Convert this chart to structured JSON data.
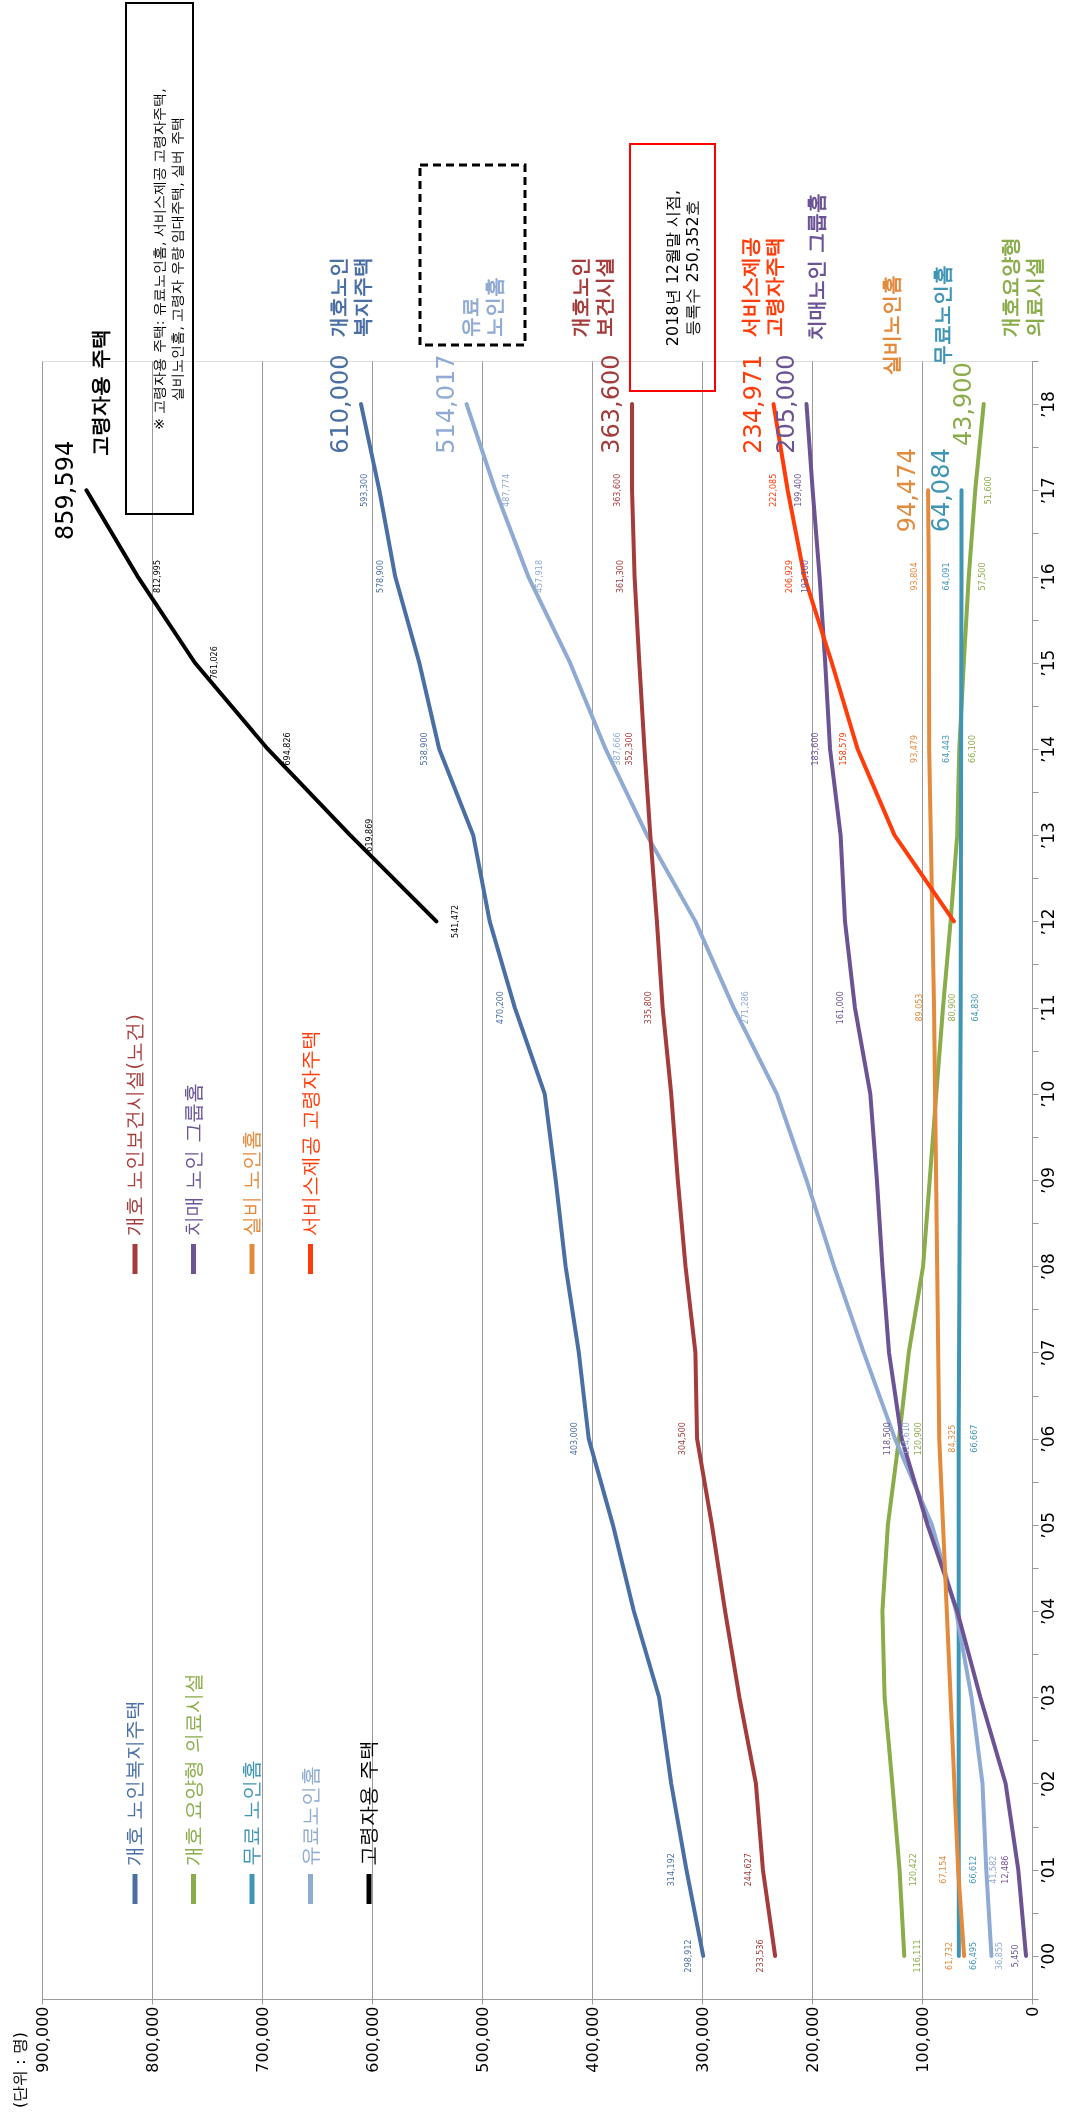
{
  "chart_data": {
    "type": "line",
    "orientation": "horizontal",
    "xlim": [
      900000,
      0
    ],
    "xticks": [
      {
        "value": 0,
        "label": "0"
      },
      {
        "value": 100000,
        "label": "100,000"
      },
      {
        "value": 200000,
        "label": "200,000"
      },
      {
        "value": 300000,
        "label": "300,000"
      },
      {
        "value": 400000,
        "label": "400,000"
      },
      {
        "value": 500000,
        "label": "500,000"
      },
      {
        "value": 600000,
        "label": "600,000"
      },
      {
        "value": 700000,
        "label": "700,000"
      },
      {
        "value": 800000,
        "label": "800,000"
      },
      {
        "value": 900000,
        "label": "900,000"
      }
    ],
    "ylim": [
      1999.5,
      2018.5
    ],
    "yticks": [
      {
        "value": 1999.5,
        "label": null
      },
      {
        "value": 2000,
        "label": "’00"
      },
      {
        "value": 2000.5,
        "label": null
      },
      {
        "value": 2001,
        "label": "’01"
      },
      {
        "value": 2001.5,
        "label": null
      },
      {
        "value": 2002,
        "label": "’02"
      },
      {
        "value": 2002.5,
        "label": null
      },
      {
        "value": 2003,
        "label": "’03"
      },
      {
        "value": 2003.5,
        "label": null
      },
      {
        "value": 2004,
        "label": "’04"
      },
      {
        "value": 2004.5,
        "label": null
      },
      {
        "value": 2005,
        "label": "’05"
      },
      {
        "value": 2005.5,
        "label": null
      },
      {
        "value": 2006,
        "label": "’06"
      },
      {
        "value": 2006.5,
        "label": null
      },
      {
        "value": 2007,
        "label": "’07"
      },
      {
        "value": 2007.5,
        "label": null
      },
      {
        "value": 2008,
        "label": "’08"
      },
      {
        "value": 2008.5,
        "label": null
      },
      {
        "value": 2009,
        "label": "’09"
      },
      {
        "value": 2009.5,
        "label": null
      },
      {
        "value": 2010,
        "label": "’10"
      },
      {
        "value": 2010.5,
        "label": null
      },
      {
        "value": 2011,
        "label": "’11"
      },
      {
        "value": 2011.5,
        "label": null
      },
      {
        "value": 2012,
        "label": "’12"
      },
      {
        "value": 2012.5,
        "label": null
      },
      {
        "value": 2013,
        "label": "’13"
      },
      {
        "value": 2013.5,
        "label": null
      },
      {
        "value": 2014,
        "label": "’14"
      },
      {
        "value": 2014.5,
        "label": null
      },
      {
        "value": 2015,
        "label": "’15"
      },
      {
        "value": 2015.5,
        "label": null
      },
      {
        "value": 2016,
        "label": "’16"
      },
      {
        "value": 2016.5,
        "label": null
      },
      {
        "value": 2017,
        "label": "’17"
      },
      {
        "value": 2017.5,
        "label": null
      },
      {
        "value": 2018,
        "label": "’18"
      },
      {
        "value": 2018.5,
        "label": null
      }
    ],
    "grid": "x",
    "legend": "left",
    "series": [
      {
        "name": "개호 노인복지주택",
        "color": "#4a6fa5",
        "x": [
          2000,
          2001,
          2002,
          2003,
          2004,
          2005,
          2006,
          2007,
          2008,
          2009,
          2010,
          2011,
          2012,
          2013,
          2014,
          2015,
          2016,
          2017,
          2018
        ],
        "values": [
          298912,
          314192,
          328000,
          339000,
          362000,
          381000,
          403000,
          412000,
          424000,
          433000,
          443000,
          470200,
          493000,
          508000,
          538900,
          557000,
          578900,
          593300,
          610000
        ],
        "value_labels": [
          "298,912",
          "314,192",
          null,
          null,
          null,
          null,
          "403,000",
          null,
          null,
          null,
          null,
          "470,200",
          null,
          null,
          "538,900",
          null,
          "578,900",
          "593,300",
          "610,000"
        ]
      },
      {
        "name": "개호 요양형 의료시설",
        "color": "#8aac4a",
        "x": [
          2000,
          2001,
          2002,
          2003,
          2004,
          2005,
          2006,
          2007,
          2008,
          2009,
          2010,
          2011,
          2012,
          2013,
          2014,
          2015,
          2016,
          2017,
          2018
        ],
        "values": [
          116111,
          120422,
          127000,
          134000,
          136000,
          131000,
          120900,
          112000,
          99000,
          93000,
          87000,
          80900,
          74000,
          68000,
          66100,
          62000,
          57500,
          51600,
          43900
        ],
        "value_labels": [
          "116,111",
          "120,422",
          null,
          null,
          null,
          null,
          "120,900",
          null,
          null,
          null,
          null,
          "80,900",
          null,
          null,
          "66,100",
          null,
          "57,500",
          "51,600",
          "43,900"
        ]
      },
      {
        "name": "무료 노인홈",
        "color": "#3e95b5",
        "x": [
          2000,
          2001,
          2006,
          2011,
          2014,
          2016,
          2017
        ],
        "values": [
          66495,
          66612,
          66667,
          64830,
          64443,
          64091,
          64084
        ],
        "value_labels": [
          "66,495",
          "66,612",
          "66,667",
          "64,830",
          "64,443",
          "64,091",
          "64,084"
        ]
      },
      {
        "name": "유료노인홈",
        "color": "#8faad3",
        "x": [
          2000,
          2001,
          2002,
          2003,
          2004,
          2005,
          2006,
          2007,
          2008,
          2009,
          2010,
          2011,
          2012,
          2013,
          2014,
          2015,
          2016,
          2017,
          2018
        ],
        "values": [
          36855,
          41582,
          45000,
          55000,
          69000,
          91000,
          124610,
          153000,
          180000,
          205000,
          232000,
          271286,
          306000,
          350000,
          387666,
          420000,
          457918,
          487774,
          514017
        ],
        "value_labels": [
          "36,855",
          "41,582",
          null,
          null,
          null,
          null,
          "124,610",
          null,
          null,
          null,
          null,
          "271,286",
          null,
          null,
          "387,666",
          null,
          "457,918",
          "487,774",
          "514,017"
        ]
      },
      {
        "name": "고령자용 주택",
        "color": "#000000",
        "x": [
          2012,
          2013,
          2014,
          2015,
          2016,
          2017
        ],
        "values": [
          541472,
          619869,
          694826,
          761026,
          812995,
          859594
        ],
        "value_labels": [
          "541,472",
          "619,869",
          "694,826",
          "761,026",
          "812,995",
          "859,594"
        ]
      },
      {
        "name": "개호 노인보건시설(노건)",
        "color": "#a53c3c",
        "x": [
          2000,
          2001,
          2002,
          2003,
          2004,
          2005,
          2006,
          2007,
          2008,
          2009,
          2010,
          2011,
          2012,
          2013,
          2014,
          2015,
          2016,
          2017,
          2018
        ],
        "values": [
          233536,
          244627,
          251000,
          266000,
          279000,
          291000,
          304500,
          306000,
          315000,
          322000,
          328000,
          335800,
          341000,
          347000,
          352300,
          357000,
          361300,
          363600,
          363600
        ],
        "value_labels": [
          "233,536",
          "244,627",
          null,
          null,
          null,
          null,
          "304,500",
          null,
          null,
          null,
          null,
          "335,800",
          null,
          null,
          "352,300",
          null,
          "361,300",
          "363,600",
          "363,600"
        ]
      },
      {
        "name": "치매 노인 그룹홈",
        "color": "#6b5394",
        "x": [
          2000,
          2001,
          2002,
          2003,
          2004,
          2005,
          2006,
          2007,
          2008,
          2009,
          2010,
          2011,
          2012,
          2013,
          2014,
          2015,
          2016,
          2017,
          2018
        ],
        "values": [
          5450,
          12486,
          24000,
          47000,
          68000,
          95000,
          118500,
          130000,
          136000,
          141000,
          147000,
          161000,
          170000,
          174000,
          183600,
          188000,
          193100,
          199400,
          205000
        ],
        "value_labels": [
          "5,450",
          "12,486",
          null,
          null,
          null,
          null,
          "118,500",
          null,
          null,
          null,
          null,
          "161,000",
          null,
          null,
          "183,600",
          null,
          "193,100",
          "199,400",
          "205,000"
        ]
      },
      {
        "name": "실비 노인홈",
        "color": "#e48a3c",
        "x": [
          2000,
          2001,
          2006,
          2011,
          2014,
          2016,
          2017
        ],
        "values": [
          61732,
          67154,
          84325,
          89053,
          93479,
          93804,
          94474
        ],
        "value_labels": [
          "61,732",
          "67,154",
          "84,325",
          "89,053",
          "93,479",
          "93,804",
          "94,474"
        ]
      },
      {
        "name": "서비스제공 고령자주택",
        "color": "#ff3c0a",
        "x": [
          2012,
          2013,
          2014,
          2015,
          2016,
          2017,
          2018
        ],
        "values": [
          71000,
          125000,
          158579,
          182000,
          206929,
          222085,
          234971
        ],
        "value_labels": [
          null,
          null,
          "158,579",
          null,
          "206,929",
          "222,085",
          "234,971"
        ]
      }
    ],
    "annotations": [
      "개호노인\n복지주택",
      "개호요양형\n의료시설",
      "무료노인홈",
      "유료\n노인홈",
      "고령자용 주택",
      "개호노인\n보건시설",
      "치매노인 그룹홈",
      "실비노인홈",
      "서비스제공\n고령자주택",
      "※ 고령자용 주택: 유료노인홈, 서비스제공 고령자주택,\n실비노인홈, 고령자 우량 임대주택, 실버 주택",
      "2018년 12월말 시점,\n등록수 250,352호",
      "(단위 : 명)"
    ]
  }
}
